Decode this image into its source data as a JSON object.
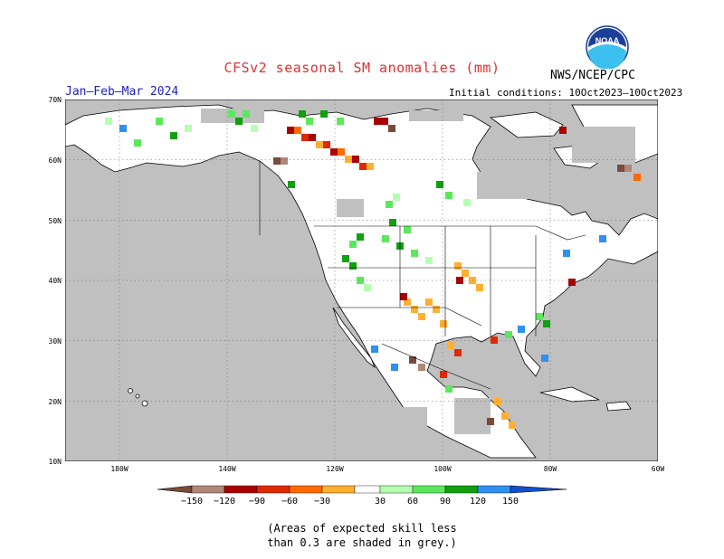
{
  "header": {
    "title": "CFSv2 seasonal SM anomalies (mm)",
    "org": "NWS/NCEP/CPC",
    "period": "Jan–Feb–Mar 2024",
    "init_conditions": "Initial conditions: 10Oct2023–10Oct2023",
    "logo_text": "NOAA"
  },
  "map": {
    "region": "North America",
    "lon_range": [
      -190,
      -60
    ],
    "lat_range": [
      10,
      70
    ],
    "lat_labels": [
      "70N",
      "60N",
      "50N",
      "40N",
      "30N",
      "20N",
      "10N"
    ],
    "lon_labels": [
      "180W",
      "140W",
      "120W",
      "100W",
      "80W",
      "60W"
    ],
    "colors": {
      "ocean_grey": "#c0c0c0",
      "land": "#ffffff",
      "lines": "#000000"
    }
  },
  "legend": {
    "labels": [
      "−150",
      "−120",
      "−90",
      "−60",
      "−30",
      "30",
      "60",
      "90",
      "120",
      "150"
    ],
    "colors": [
      "#7a4a3a",
      "#b08878",
      "#aa0000",
      "#e02800",
      "#ff6a00",
      "#ffb030",
      "#ffffff",
      "#b4ffb0",
      "#5ce85c",
      "#10a010",
      "#3090f0",
      "#1050d0"
    ]
  },
  "footnote": {
    "line1": "(Areas of expected skill less",
    "line2": "than 0.3 are shaded in grey.)"
  }
}
